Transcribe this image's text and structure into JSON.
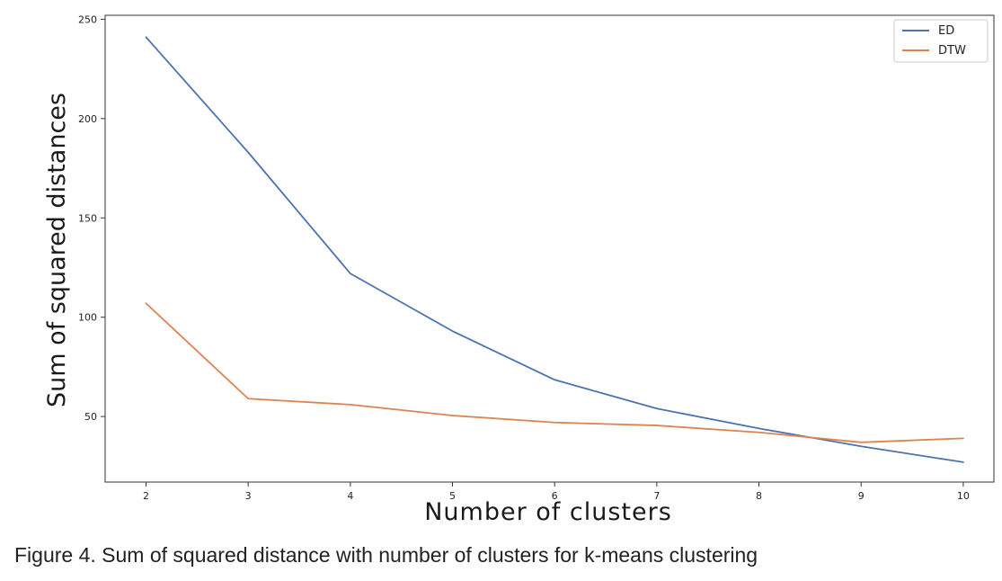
{
  "caption": "Figure 4. Sum of squared distance with number of clusters for k-means clustering",
  "chart_data": {
    "type": "line",
    "title": "",
    "xlabel": "Number of clusters",
    "ylabel": "Sum of squared distances",
    "x": [
      2,
      3,
      4,
      5,
      6,
      7,
      8,
      9,
      10
    ],
    "x_ticks": [
      "2",
      "3",
      "4",
      "5",
      "6",
      "7",
      "8",
      "9",
      "10"
    ],
    "y_ticks": [
      "50",
      "100",
      "150",
      "200",
      "250"
    ],
    "xlim": [
      1.6,
      10.3
    ],
    "ylim": [
      17,
      252
    ],
    "grid": false,
    "legend_position": "top-right",
    "series": [
      {
        "name": "ED",
        "color": "#4c72b0",
        "values": [
          241,
          183,
          122,
          93,
          68.5,
          54,
          44,
          35,
          27
        ]
      },
      {
        "name": "DTW",
        "color": "#dd8452",
        "values": [
          107,
          59,
          56,
          50.5,
          47,
          45.5,
          42,
          37,
          39
        ]
      }
    ]
  }
}
